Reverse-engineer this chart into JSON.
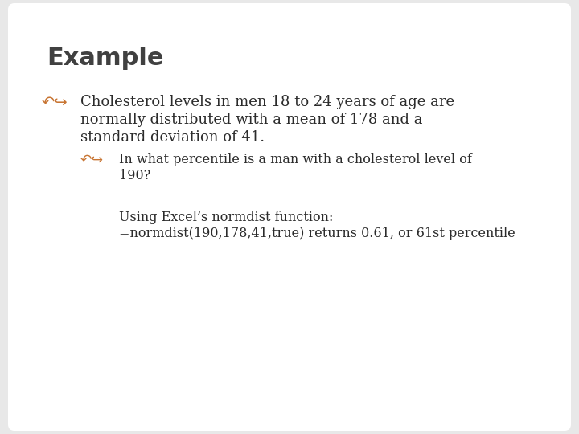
{
  "title": "Example",
  "title_color": "#404040",
  "title_fontsize": 22,
  "background_color": "#e8e8e8",
  "slide_bg": "#ffffff",
  "bullet_color": "#c87533",
  "text_color": "#2b2b2b",
  "bullet1_lines": [
    "Cholesterol levels in men 18 to 24 years of age are",
    "normally distributed with a mean of 178 and a",
    "standard deviation of 41."
  ],
  "bullet2_lines": [
    "In what percentile is a man with a cholesterol level of",
    "190?"
  ],
  "note_lines": [
    "Using Excel’s normdist function:",
    "=normdist(190,178,41,true) returns 0.61, or 61st percentile"
  ],
  "bullet1_fontsize": 13,
  "bullet2_fontsize": 11.5,
  "note_fontsize": 11.5
}
